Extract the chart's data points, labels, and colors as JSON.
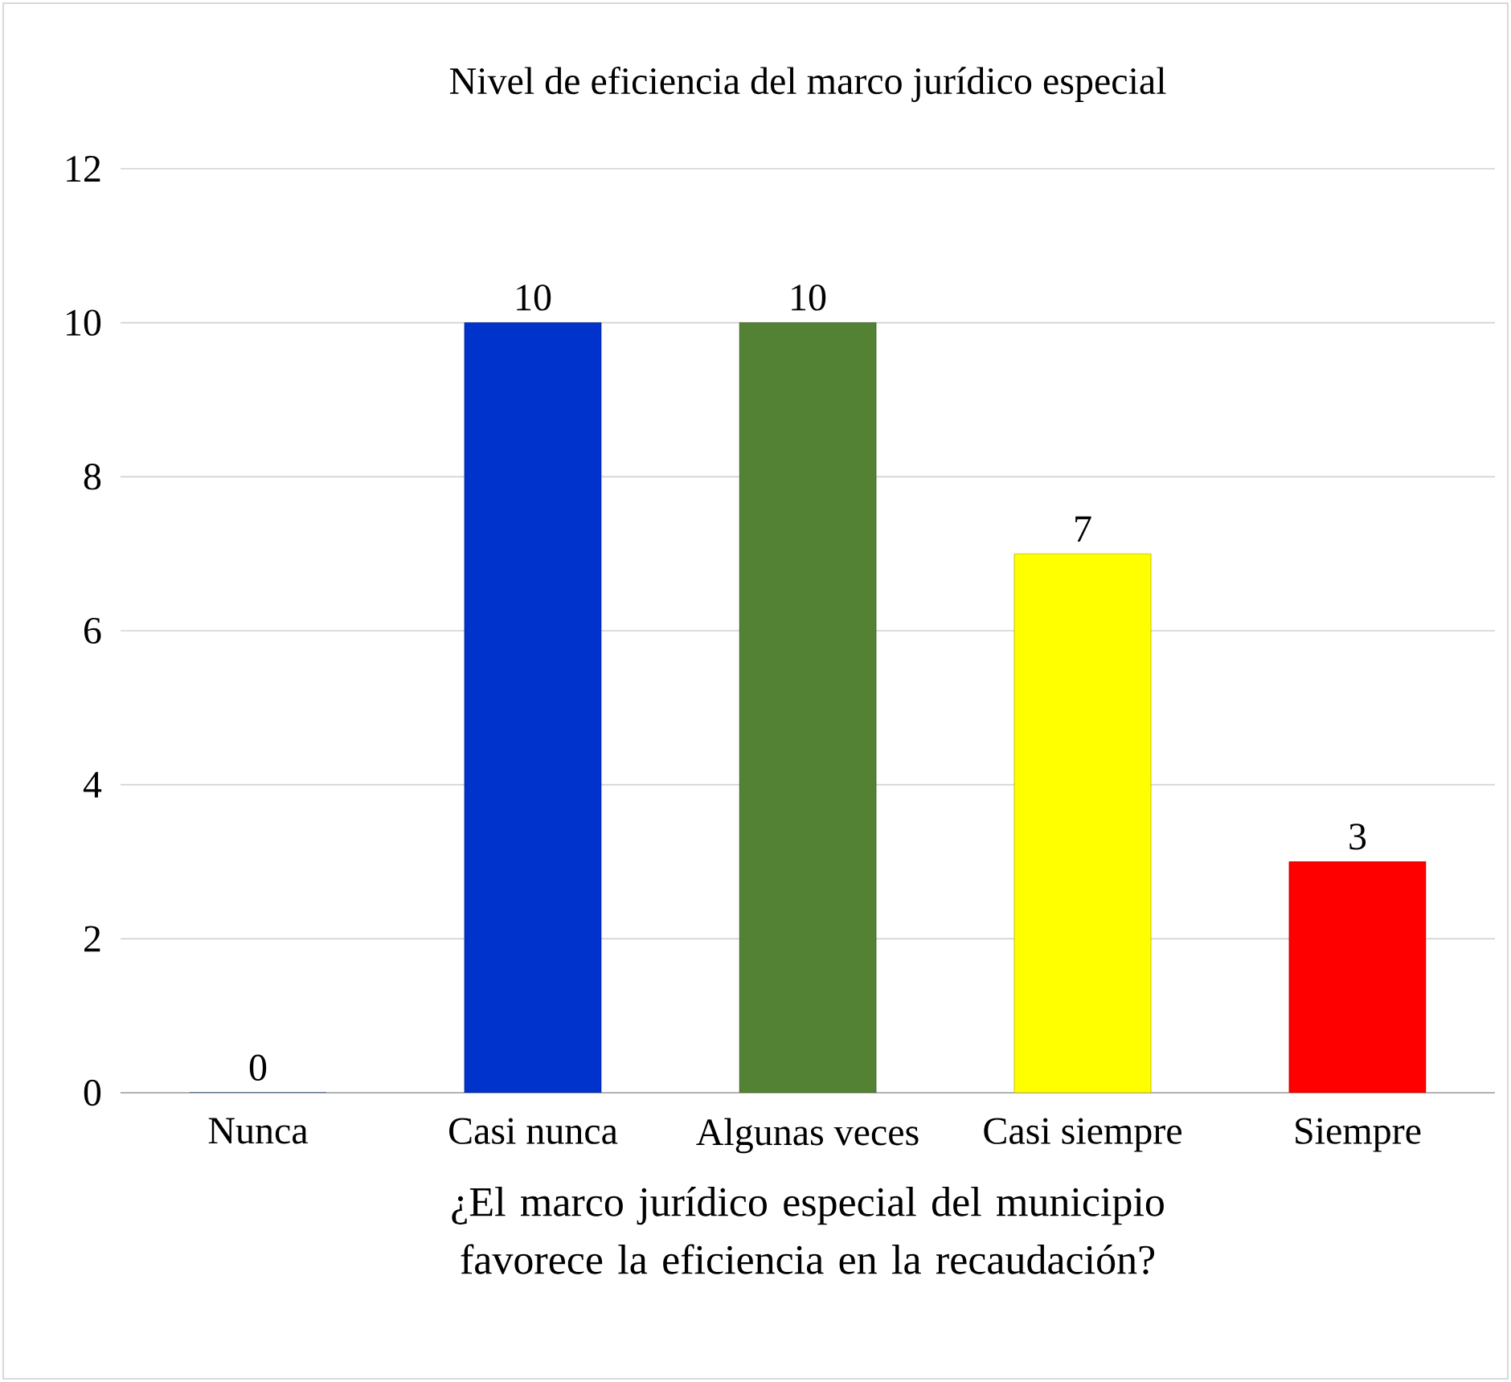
{
  "chart_data": {
    "type": "bar",
    "title": "Nivel de eficiencia del marco jurídico especial",
    "xlabel": "¿El marco jurídico especial del municipio favorece la eficiencia en la recaudación?",
    "categories": [
      "Nunca",
      "Casi nunca",
      "Algunas veces",
      "Casi siempre",
      "Siempre"
    ],
    "values": [
      0,
      10,
      10,
      7,
      3
    ],
    "colors": [
      "#4472c4",
      "#0033cc",
      "#548235",
      "#ffff00",
      "#ff0000"
    ],
    "ylim": [
      0,
      12
    ],
    "yticks": [
      0,
      2,
      4,
      6,
      8,
      10,
      12
    ],
    "grid": "y",
    "data_labels": true
  }
}
